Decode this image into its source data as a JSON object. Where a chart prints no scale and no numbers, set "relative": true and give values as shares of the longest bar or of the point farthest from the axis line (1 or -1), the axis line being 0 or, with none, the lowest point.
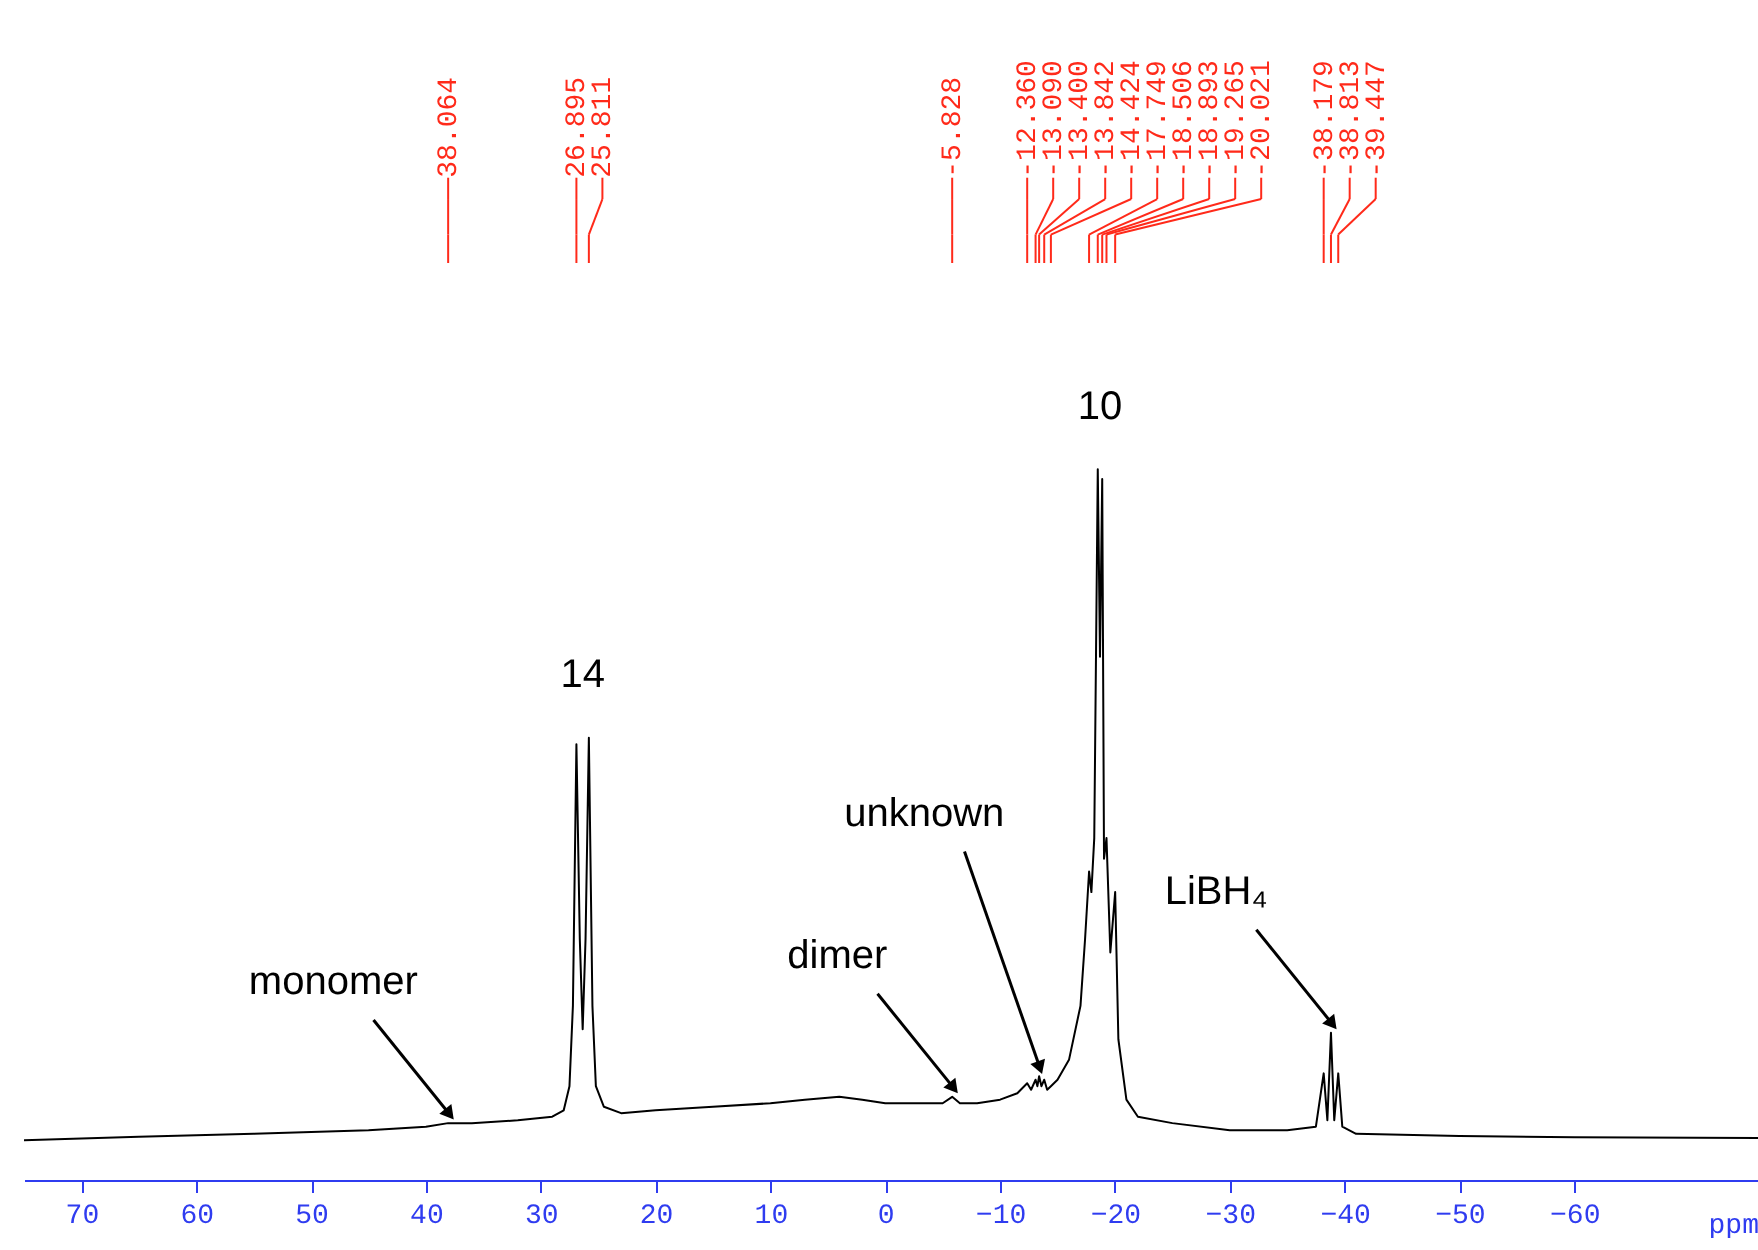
{
  "chart_data": {
    "type": "line",
    "xlabel": "ppm",
    "relative": true,
    "tick_labels": "x",
    "xlim": [
      75,
      -76
    ],
    "xticks": [
      70,
      60,
      50,
      40,
      30,
      20,
      10,
      0,
      -10,
      -20,
      -30,
      -40,
      -50,
      -60
    ],
    "series": [
      {
        "color": "#000000",
        "x": [
          75,
          65,
          55,
          45,
          40,
          38.064,
          36,
          32,
          29,
          28,
          27.5,
          27.2,
          26.895,
          26.6,
          26.35,
          26.1,
          25.811,
          25.5,
          25.2,
          24.5,
          23,
          20,
          15,
          10,
          7,
          4,
          2,
          0,
          -5,
          -5.828,
          -6.5,
          -8,
          -10,
          -11.5,
          -12.36,
          -12.7,
          -13.09,
          -13.25,
          -13.4,
          -13.6,
          -13.842,
          -14.1,
          -14.424,
          -15,
          -16,
          -17,
          -17.4,
          -17.749,
          -17.95,
          -18.2,
          -18.506,
          -18.7,
          -18.893,
          -19.05,
          -19.265,
          -19.6,
          -20.021,
          -20.3,
          -21,
          -22,
          -25,
          -30,
          -35,
          -37.5,
          -38.179,
          -38.5,
          -38.813,
          -39.1,
          -39.447,
          -39.8,
          -41,
          -50,
          -60,
          -76
        ],
        "values": [
          0.056,
          0.061,
          0.065,
          0.07,
          0.075,
          0.08,
          0.08,
          0.084,
          0.089,
          0.098,
          0.132,
          0.245,
          0.613,
          0.339,
          0.212,
          0.339,
          0.622,
          0.245,
          0.132,
          0.103,
          0.094,
          0.098,
          0.103,
          0.108,
          0.113,
          0.117,
          0.113,
          0.108,
          0.108,
          0.117,
          0.108,
          0.108,
          0.113,
          0.122,
          0.136,
          0.127,
          0.141,
          0.132,
          0.146,
          0.132,
          0.141,
          0.127,
          0.132,
          0.141,
          0.169,
          0.245,
          0.339,
          0.434,
          0.405,
          0.481,
          1,
          0.736,
          0.986,
          0.452,
          0.481,
          0.32,
          0.405,
          0.198,
          0.113,
          0.089,
          0.08,
          0.07,
          0.07,
          0.075,
          0.15,
          0.084,
          0.207,
          0.084,
          0.15,
          0.075,
          0.065,
          0.062,
          0.06,
          0.059
        ]
      }
    ],
    "annotations": [
      {
        "text": "38.064",
        "x": 38.064
      },
      {
        "text": "26.895",
        "x": 26.895
      },
      {
        "text": "25.811",
        "x": 25.811
      },
      {
        "text": "-5.828",
        "x": -5.828
      },
      {
        "text": "-12.360",
        "x": -12.36
      },
      {
        "text": "-13.090",
        "x": -13.09
      },
      {
        "text": "-13.400",
        "x": -13.4
      },
      {
        "text": "-13.842",
        "x": -13.842
      },
      {
        "text": "-14.424",
        "x": -14.424
      },
      {
        "text": "-17.749",
        "x": -17.749
      },
      {
        "text": "-18.506",
        "x": -18.506
      },
      {
        "text": "-18.893",
        "x": -18.893
      },
      {
        "text": "-19.265",
        "x": -19.265
      },
      {
        "text": "-20.021",
        "x": -20.021
      },
      {
        "text": "-38.179",
        "x": -38.179
      },
      {
        "text": "-38.813",
        "x": -38.813
      },
      {
        "text": "-39.447",
        "x": -39.447
      },
      {
        "text": "monomer",
        "x": 38.064,
        "y": 0.08
      },
      {
        "text": "14",
        "x": 26.35,
        "y": 0.622
      },
      {
        "text": "dimer",
        "x": -5.828,
        "y": 0.117
      },
      {
        "text": "unknown",
        "x": -13.4,
        "y": 0.146
      },
      {
        "text": "10",
        "x": -18.7,
        "y": 1
      },
      {
        "text": "LiBH₄",
        "x": -38.813,
        "y": 0.207
      }
    ]
  }
}
